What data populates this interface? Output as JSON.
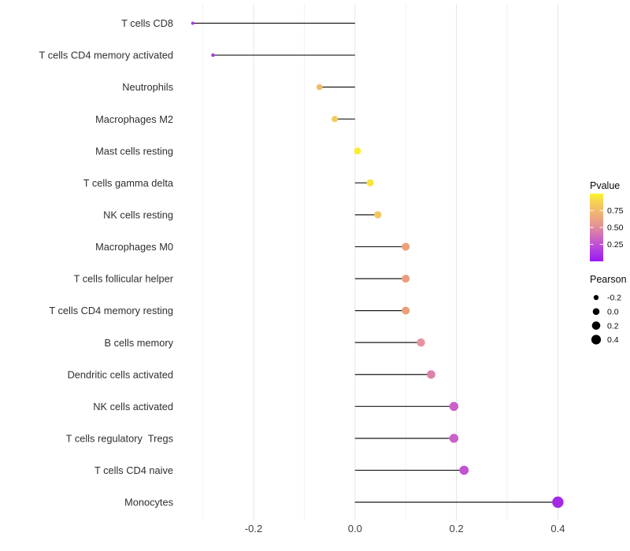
{
  "chart_data": {
    "type": "scatter",
    "variant": "lollipop-horizontal",
    "title": "",
    "xlabel": "",
    "ylabel": "",
    "xlim": [
      -0.345,
      0.45
    ],
    "x_tick_values": [
      -0.2,
      0.0,
      0.2,
      0.4
    ],
    "x_tick_labels": [
      "-0.2",
      "0.0",
      "0.2",
      "0.4"
    ],
    "x_minor_tick_values": [
      -0.3,
      -0.1,
      0.1,
      0.3
    ],
    "grid": true,
    "background_color": "#ffffff",
    "stem_color": "#1a1a1a",
    "major_grid_color": "#e4e4e4",
    "minor_grid_color": "#f2f2f2",
    "points": [
      {
        "category": "T cells CD8",
        "pearson": -0.32,
        "pvalue": 0.13,
        "color": "#a637dd"
      },
      {
        "category": "T cells CD4 memory activated",
        "pearson": -0.28,
        "pvalue": 0.15,
        "color": "#a93cdf"
      },
      {
        "category": "Neutrophils",
        "pearson": -0.07,
        "pvalue": 0.73,
        "color": "#efbc67"
      },
      {
        "category": "Macrophages M2",
        "pearson": -0.04,
        "pvalue": 0.8,
        "color": "#f3cb59"
      },
      {
        "category": "Mast cells resting",
        "pearson": 0.005,
        "pvalue": 0.96,
        "color": "#fbee2e"
      },
      {
        "category": "T cells gamma delta",
        "pearson": 0.03,
        "pvalue": 0.9,
        "color": "#f8e43c"
      },
      {
        "category": "NK cells resting",
        "pearson": 0.045,
        "pvalue": 0.78,
        "color": "#f2c65e"
      },
      {
        "category": "Macrophages M0",
        "pearson": 0.1,
        "pvalue": 0.62,
        "color": "#eba179"
      },
      {
        "category": "T cells follicular helper",
        "pearson": 0.1,
        "pvalue": 0.6,
        "color": "#ea9d7d"
      },
      {
        "category": "T cells CD4 memory resting",
        "pearson": 0.1,
        "pvalue": 0.6,
        "color": "#ea9e7b"
      },
      {
        "category": "B cells memory",
        "pearson": 0.13,
        "pvalue": 0.52,
        "color": "#e7939e"
      },
      {
        "category": "Dendritic cells activated",
        "pearson": 0.15,
        "pvalue": 0.44,
        "color": "#dc80ac"
      },
      {
        "category": "NK cells activated",
        "pearson": 0.195,
        "pvalue": 0.32,
        "color": "#ca60c9"
      },
      {
        "category": "T cells regulatory  Tregs",
        "pearson": 0.195,
        "pvalue": 0.32,
        "color": "#ca60c9"
      },
      {
        "category": "T cells CD4 naive",
        "pearson": 0.215,
        "pvalue": 0.28,
        "color": "#c353d2"
      },
      {
        "category": "Monocytes",
        "pearson": 0.4,
        "pvalue": 0.12,
        "color": "#a32be8"
      }
    ],
    "color_legend": {
      "title": "Pvalue",
      "tick_labels": [
        "0.75",
        "0.50",
        "0.25"
      ],
      "tick_values": [
        0.75,
        0.5,
        0.25
      ],
      "range": [
        0,
        1
      ],
      "gradient_stops": [
        {
          "at": 0.0,
          "color": "#9a16f2"
        },
        {
          "at": 0.12,
          "color": "#ab35e5"
        },
        {
          "at": 0.25,
          "color": "#bf4fd6"
        },
        {
          "at": 0.35,
          "color": "#ce68be"
        },
        {
          "at": 0.45,
          "color": "#db80a6"
        },
        {
          "at": 0.55,
          "color": "#e59790"
        },
        {
          "at": 0.65,
          "color": "#eca97e"
        },
        {
          "at": 0.75,
          "color": "#f1bb6b"
        },
        {
          "at": 0.87,
          "color": "#f6d054"
        },
        {
          "at": 1.0,
          "color": "#fbf32c"
        }
      ]
    },
    "size_legend": {
      "title": "Pearson",
      "dot_color": "#000000",
      "items": [
        {
          "label": "-0.2",
          "value": -0.2,
          "radius": 3.2
        },
        {
          "label": "0.0",
          "value": 0.0,
          "radius": 4.3
        },
        {
          "label": "0.2",
          "value": 0.2,
          "radius": 5.3
        },
        {
          "label": "0.4",
          "value": 0.4,
          "radius": 6.1
        }
      ]
    }
  }
}
